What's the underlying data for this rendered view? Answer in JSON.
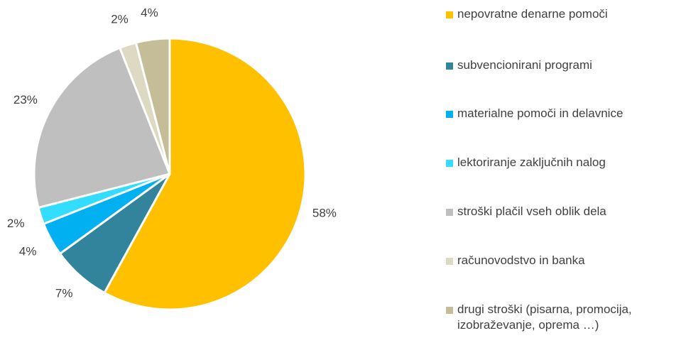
{
  "chart_data": {
    "type": "pie",
    "categories": [
      "nepovratne denarne pomoči",
      "subvencionirani programi",
      "materialne pomoči in delavnice",
      "lektoriranje zaključnih nalog",
      "stroški plačil vseh oblik dela",
      "računovodstvo in banka",
      "drugi stroški (pisarna, promocija, izobraževanje, oprema …)"
    ],
    "values": [
      58,
      7,
      4,
      2,
      23,
      2,
      4
    ],
    "labels": [
      "58%",
      "7%",
      "4%",
      "2%",
      "23%",
      "2%",
      "4%"
    ],
    "colors": [
      "#FFC000",
      "#31849B",
      "#00B0F0",
      "#33DDFF",
      "#BFBFBF",
      "#DDD9C3",
      "#C4BD97"
    ],
    "legend_position": "right"
  }
}
